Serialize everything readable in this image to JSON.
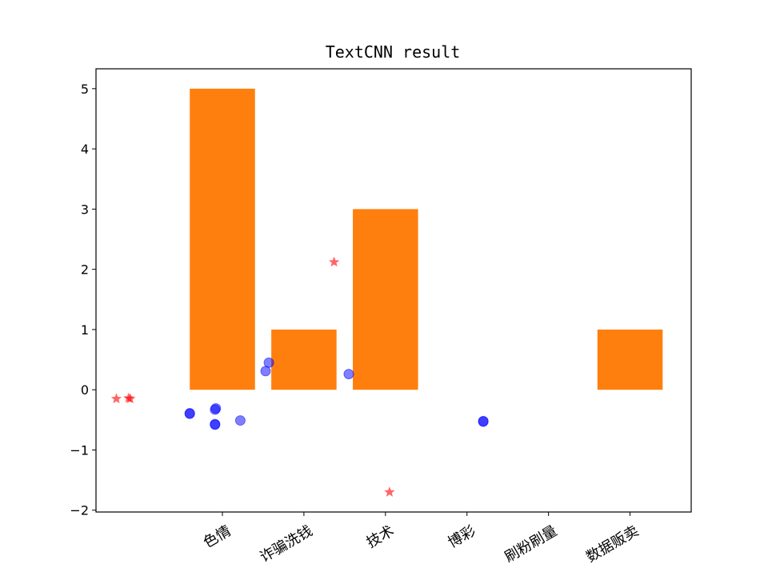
{
  "chart_data": {
    "type": "bar",
    "title": "TextCNN result",
    "xlabel": "",
    "ylabel": "",
    "ylim": [
      -2.03,
      5.33
    ],
    "yticks": [
      -2,
      -1,
      0,
      1,
      2,
      3,
      4,
      5
    ],
    "ytick_labels": [
      "−2",
      "−1",
      "0",
      "1",
      "2",
      "3",
      "4",
      "5"
    ],
    "categories": [
      "色情",
      "诈骗洗钱",
      "技术",
      "博彩",
      "刷粉刷量",
      "数据贩卖"
    ],
    "category_positions": [
      1,
      2,
      3,
      4,
      5,
      6
    ],
    "xlim": [
      -0.55,
      6.75
    ],
    "bars": {
      "values": [
        5,
        1,
        3,
        0,
        0,
        1
      ],
      "color": "#ff7f0e",
      "width": 0.8
    },
    "scatter_series": [
      {
        "marker": "circle",
        "color": "#0000ff",
        "alpha": 0.5,
        "points": [
          {
            "x": 0.6,
            "y": -0.4
          },
          {
            "x": 0.91,
            "y": -0.57
          },
          {
            "x": 0.92,
            "y": -0.31
          },
          {
            "x": 0.91,
            "y": -0.33
          },
          {
            "x": 1.22,
            "y": -0.51
          },
          {
            "x": 1.53,
            "y": 0.31
          },
          {
            "x": 1.57,
            "y": 0.45
          },
          {
            "x": 2.55,
            "y": 0.26
          },
          {
            "x": 4.2,
            "y": -0.52
          },
          {
            "x": 0.6,
            "y": -0.39
          },
          {
            "x": 0.91,
            "y": -0.58
          },
          {
            "x": 4.2,
            "y": -0.53
          }
        ]
      },
      {
        "marker": "star",
        "color": "#ff0000",
        "alpha": 0.6,
        "points": [
          {
            "x": -0.3,
            "y": -0.15
          },
          {
            "x": -0.15,
            "y": -0.14
          },
          {
            "x": -0.13,
            "y": -0.15
          },
          {
            "x": 2.37,
            "y": 2.12
          },
          {
            "x": 3.05,
            "y": -1.7
          }
        ]
      }
    ],
    "grid": false,
    "legend": "none"
  }
}
